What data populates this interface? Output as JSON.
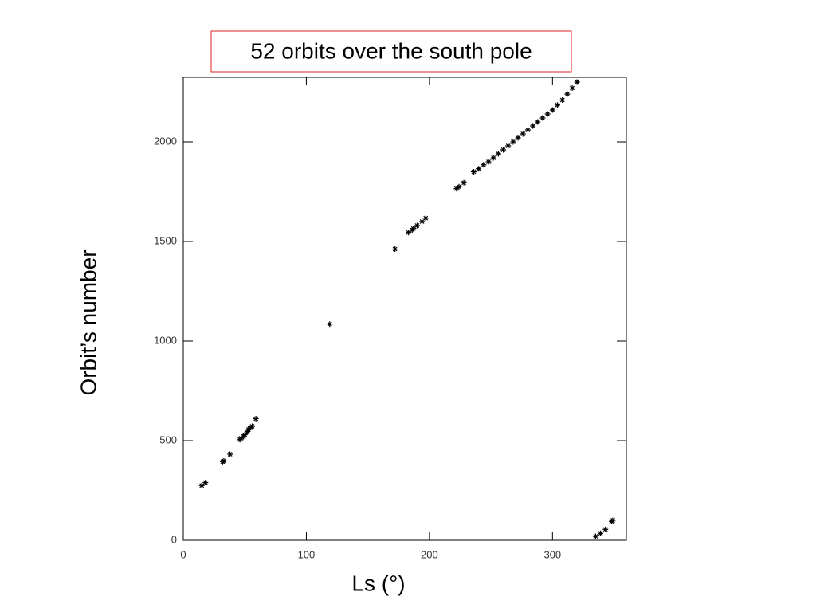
{
  "chart_data": {
    "type": "scatter",
    "title": "52 orbits over the south pole",
    "x_label": "Ls (°)",
    "y_label": "Orbit’s number",
    "x": [
      15,
      18,
      32,
      33,
      38,
      46,
      47,
      49,
      50,
      52,
      53,
      54,
      56,
      59,
      119,
      172,
      183,
      186,
      187,
      190,
      194,
      197,
      222,
      224,
      228,
      236,
      240,
      244,
      248,
      252,
      256,
      260,
      264,
      268,
      272,
      276,
      280,
      284,
      288,
      292,
      296,
      300,
      304,
      308,
      312,
      316,
      320,
      335,
      339,
      343,
      348,
      349
    ],
    "values": [
      275,
      290,
      395,
      398,
      432,
      505,
      512,
      520,
      530,
      545,
      555,
      563,
      572,
      610,
      1085,
      1462,
      1545,
      1558,
      1565,
      1580,
      1600,
      1617,
      1765,
      1775,
      1795,
      1850,
      1865,
      1885,
      1900,
      1920,
      1940,
      1960,
      1980,
      2000,
      2020,
      2040,
      2060,
      2080,
      2100,
      2120,
      2140,
      2160,
      2185,
      2210,
      2240,
      2270,
      2300,
      20,
      35,
      55,
      95,
      100
    ],
    "color": "#000000",
    "xlim": [
      0,
      360
    ],
    "xticks": [
      0,
      100,
      200,
      300
    ],
    "ylim": [
      0,
      2324
    ],
    "yticks": [
      0,
      500,
      1000,
      1500,
      2000
    ]
  }
}
